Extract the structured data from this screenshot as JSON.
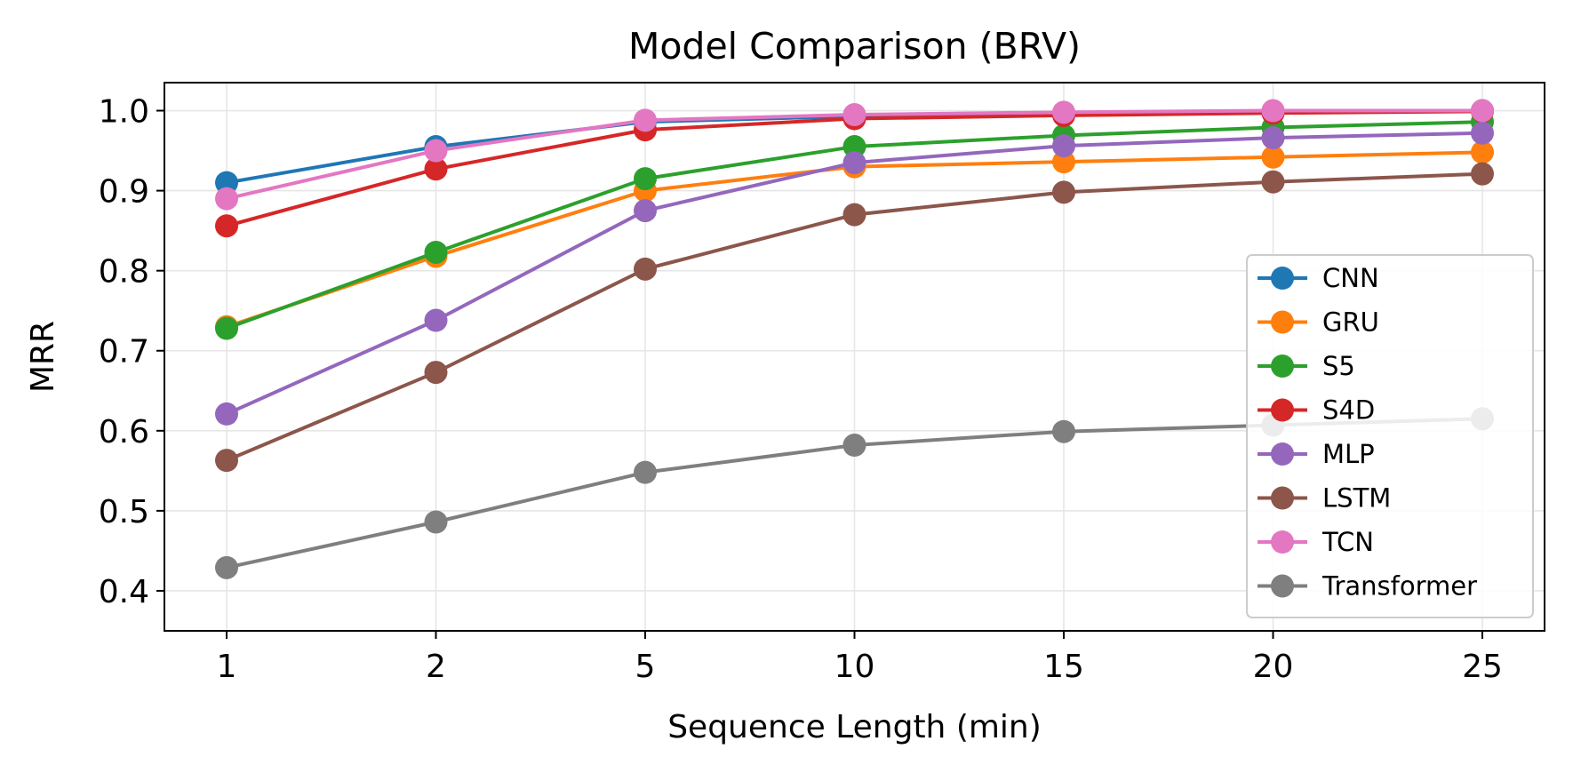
{
  "chart_data": {
    "type": "line",
    "title": "Model Comparison (BRV)",
    "xlabel": "Sequence Length (min)",
    "ylabel": "MRR",
    "categories": [
      "1",
      "2",
      "5",
      "10",
      "15",
      "20",
      "25"
    ],
    "ylim": [
      0.35,
      1.035
    ],
    "yticks": [
      "0.4",
      "0.5",
      "0.6",
      "0.7",
      "0.8",
      "0.9",
      "1.0"
    ],
    "grid": true,
    "legend_position": "lower-right",
    "series": [
      {
        "name": "CNN",
        "color": "#1f77b4",
        "values": [
          0.91,
          0.955,
          0.986,
          0.993,
          0.997,
          0.999,
          1.0
        ]
      },
      {
        "name": "GRU",
        "color": "#ff7f0e",
        "values": [
          0.73,
          0.818,
          0.9,
          0.93,
          0.936,
          0.942,
          0.948
        ]
      },
      {
        "name": "S5",
        "color": "#2ca02c",
        "values": [
          0.728,
          0.823,
          0.915,
          0.955,
          0.969,
          0.979,
          0.986
        ]
      },
      {
        "name": "S4D",
        "color": "#d62728",
        "values": [
          0.856,
          0.927,
          0.976,
          0.99,
          0.994,
          0.997,
          0.999
        ]
      },
      {
        "name": "MLP",
        "color": "#9467bd",
        "values": [
          0.621,
          0.738,
          0.875,
          0.935,
          0.956,
          0.966,
          0.972
        ]
      },
      {
        "name": "LSTM",
        "color": "#8c564b",
        "values": [
          0.563,
          0.673,
          0.802,
          0.87,
          0.898,
          0.911,
          0.921
        ]
      },
      {
        "name": "TCN",
        "color": "#e377c2",
        "values": [
          0.89,
          0.95,
          0.988,
          0.995,
          0.998,
          1.0,
          1.0
        ]
      },
      {
        "name": "Transformer",
        "color": "#7f7f7f",
        "values": [
          0.429,
          0.486,
          0.548,
          0.582,
          0.599,
          0.607,
          0.615
        ]
      }
    ]
  }
}
